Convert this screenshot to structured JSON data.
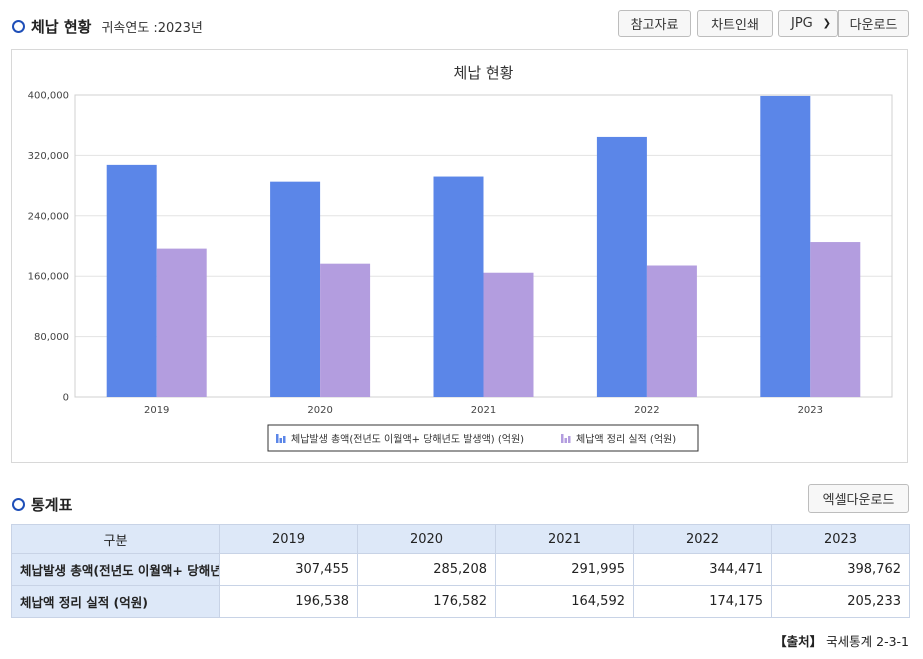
{
  "section1": {
    "title": "체납 현황",
    "subtitle": "귀속연도 :2023년"
  },
  "toolbar": {
    "reference_label": "참고자료",
    "print_label": "차트인쇄",
    "format_selected": "JPG",
    "download_label": "다운로드"
  },
  "section2": {
    "title": "통계표",
    "excel_label": "엑셀다운로드"
  },
  "chart_data": {
    "type": "bar",
    "title": "체납 현황",
    "categories": [
      "2019",
      "2020",
      "2021",
      "2022",
      "2023"
    ],
    "ylim": [
      0,
      400000
    ],
    "yticks": [
      "0",
      "80,000",
      "160,000",
      "240,000",
      "320,000",
      "400,000"
    ],
    "grid": true,
    "legend_position": "bottom",
    "series": [
      {
        "name": "체납발생 총액(전년도 이월액+ 당해년도 발생액) (억원)",
        "values": [
          307455,
          285208,
          291995,
          344471,
          398762
        ],
        "color": "#5b86e8"
      },
      {
        "name": "체납액 정리 실적 (억원)",
        "values": [
          196538,
          176582,
          164592,
          174175,
          205233
        ],
        "color": "#b39ddf"
      }
    ]
  },
  "table": {
    "header": [
      "구분",
      "2019",
      "2020",
      "2021",
      "2022",
      "2023"
    ],
    "rows": [
      {
        "label": "체납발생 총액(전년도 이월액+ 당해년도 발생액) (억원)",
        "cells": [
          "307,455",
          "285,208",
          "291,995",
          "344,471",
          "398,762"
        ]
      },
      {
        "label": "체납액 정리 실적 (억원)",
        "cells": [
          "196,538",
          "176,582",
          "164,592",
          "174,175",
          "205,233"
        ]
      }
    ]
  },
  "source": {
    "prefix": "【출처】",
    "text": "국세통계 2-3-1"
  }
}
